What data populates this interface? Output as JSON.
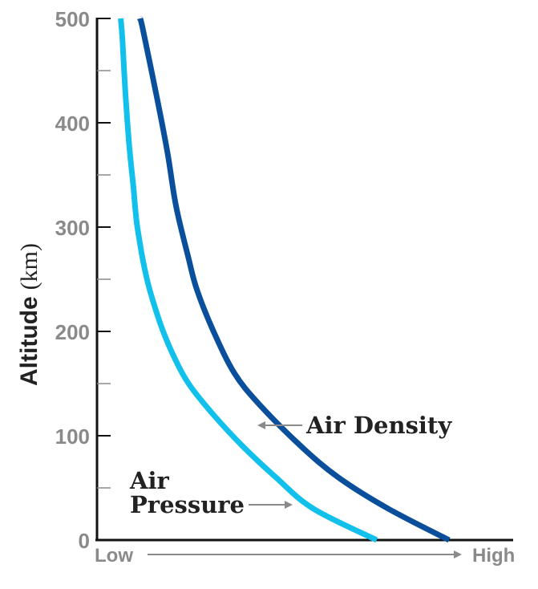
{
  "chart_data": {
    "type": "line",
    "title": "",
    "ylabel": {
      "bold": "Altitude",
      "unit": "(km)"
    },
    "xlabel_low": "Low",
    "xlabel_high": "High",
    "ylim": [
      0,
      500
    ],
    "yticks": [
      0,
      100,
      200,
      300,
      400,
      500
    ],
    "xlim": [
      0,
      1
    ],
    "grid": false,
    "series": [
      {
        "name": "Air Density",
        "color": "#0a4f9c",
        "x": [
          0.846,
          0.7,
          0.58,
          0.49,
          0.39,
          0.33,
          0.28,
          0.24,
          0.22,
          0.19,
          0.17,
          0.146,
          0.11,
          0.103
        ],
        "y": [
          0,
          30,
          60,
          90,
          130,
          160,
          200,
          240,
          270,
          320,
          370,
          420,
          490,
          500
        ]
      },
      {
        "name": "Air Pressure",
        "color": "#12c0ec",
        "x": [
          0.672,
          0.52,
          0.43,
          0.35,
          0.28,
          0.22,
          0.18,
          0.15,
          0.12,
          0.097,
          0.087,
          0.077,
          0.068,
          0.061,
          0.057
        ],
        "y": [
          0,
          30,
          60,
          90,
          120,
          150,
          180,
          210,
          250,
          300,
          340,
          380,
          430,
          480,
          500
        ]
      }
    ],
    "annotations": [
      {
        "lines": [
          "Air Density"
        ],
        "series": "Air Density"
      },
      {
        "lines": [
          "Air",
          "Pressure"
        ],
        "series": "Air Pressure"
      }
    ]
  }
}
